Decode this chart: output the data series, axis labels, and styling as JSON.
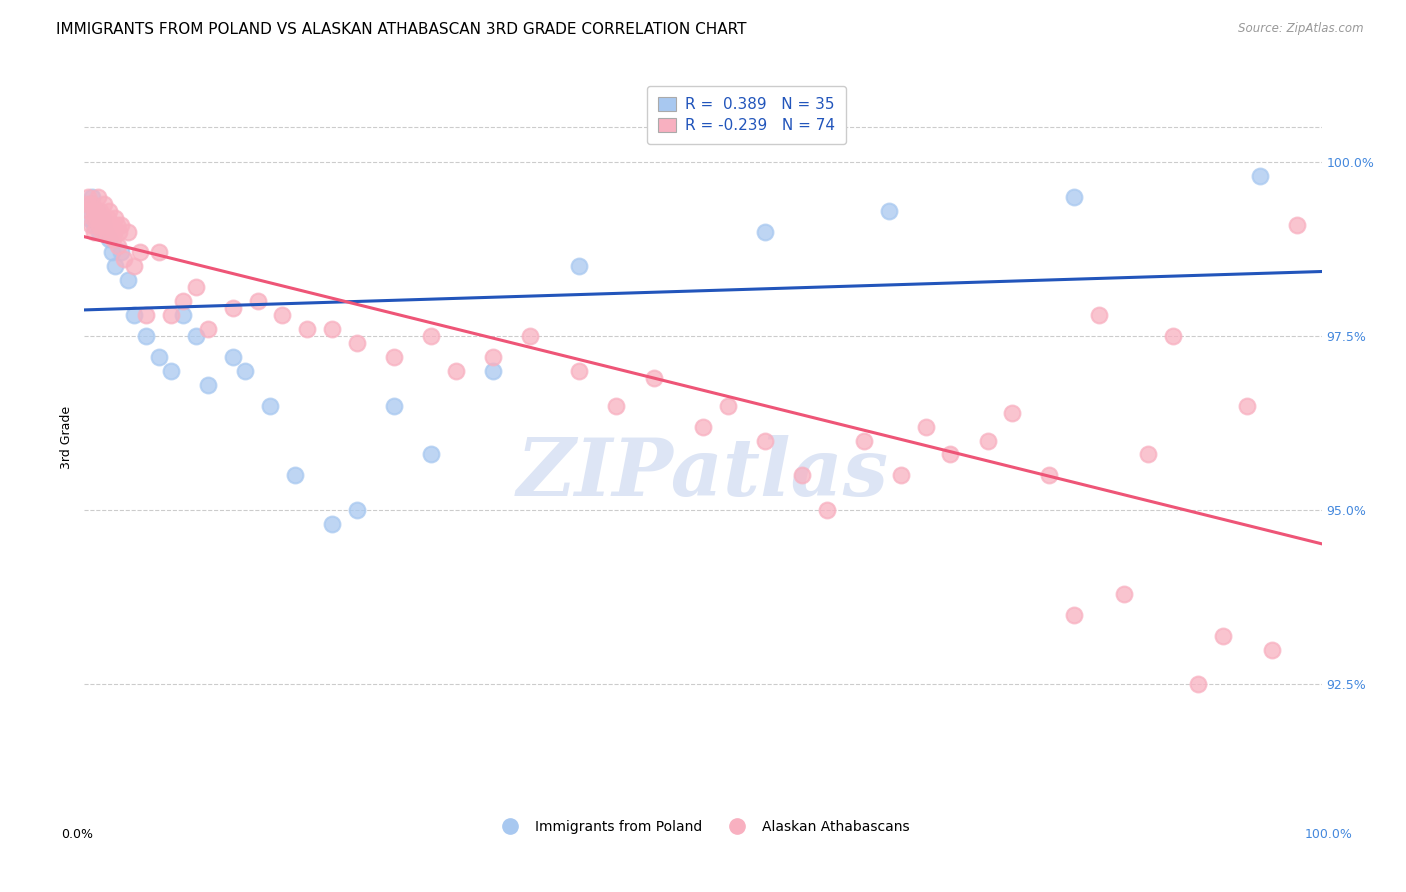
{
  "title": "IMMIGRANTS FROM POLAND VS ALASKAN ATHABASCAN 3RD GRADE CORRELATION CHART",
  "source": "Source: ZipAtlas.com",
  "ylabel": "3rd Grade",
  "right_yticks": [
    92.5,
    95.0,
    97.5,
    100.0
  ],
  "right_ylabels": [
    "92.5%",
    "95.0%",
    "97.5%",
    "100.0%"
  ],
  "xlim": [
    0,
    100
  ],
  "ylim": [
    90.8,
    101.3
  ],
  "legend_blue_label": "Immigrants from Poland",
  "legend_pink_label": "Alaskan Athabascans",
  "R_blue": "0.389",
  "N_blue": "35",
  "R_pink": "-0.239",
  "N_pink": "74",
  "blue_scatter_color": "#a8c8f0",
  "pink_scatter_color": "#f8b0c0",
  "blue_line_color": "#2255bb",
  "pink_line_color": "#ee5577",
  "blue_x": [
    0.3,
    0.5,
    0.6,
    0.8,
    1.0,
    1.2,
    1.4,
    1.5,
    1.7,
    2.0,
    2.2,
    2.5,
    3.0,
    3.5,
    4.0,
    5.0,
    6.0,
    7.0,
    8.0,
    9.0,
    10.0,
    12.0,
    13.0,
    15.0,
    17.0,
    20.0,
    22.0,
    25.0,
    28.0,
    33.0,
    40.0,
    55.0,
    65.0,
    80.0,
    95.0
  ],
  "blue_y": [
    99.2,
    99.4,
    99.5,
    99.1,
    99.3,
    99.0,
    99.2,
    99.1,
    99.0,
    98.9,
    98.7,
    98.5,
    98.7,
    98.3,
    97.8,
    97.5,
    97.2,
    97.0,
    97.8,
    97.5,
    96.8,
    97.2,
    97.0,
    96.5,
    95.5,
    94.8,
    95.0,
    96.5,
    95.8,
    97.0,
    98.5,
    99.0,
    99.3,
    99.5,
    99.8
  ],
  "pink_x": [
    0.2,
    0.3,
    0.4,
    0.5,
    0.6,
    0.7,
    0.8,
    0.9,
    1.0,
    1.1,
    1.2,
    1.3,
    1.4,
    1.5,
    1.6,
    1.7,
    1.8,
    1.9,
    2.0,
    2.1,
    2.2,
    2.3,
    2.4,
    2.5,
    2.6,
    2.7,
    2.8,
    3.0,
    3.2,
    3.5,
    4.0,
    4.5,
    5.0,
    6.0,
    7.0,
    8.0,
    9.0,
    10.0,
    12.0,
    14.0,
    16.0,
    18.0,
    20.0,
    22.0,
    25.0,
    28.0,
    30.0,
    33.0,
    36.0,
    40.0,
    43.0,
    46.0,
    50.0,
    52.0,
    55.0,
    58.0,
    60.0,
    63.0,
    66.0,
    68.0,
    70.0,
    73.0,
    75.0,
    78.0,
    80.0,
    82.0,
    84.0,
    86.0,
    88.0,
    90.0,
    92.0,
    94.0,
    96.0,
    98.0
  ],
  "pink_y": [
    99.4,
    99.5,
    99.3,
    99.1,
    99.4,
    99.2,
    99.0,
    99.3,
    99.2,
    99.5,
    99.1,
    99.3,
    99.0,
    99.2,
    99.4,
    99.1,
    99.0,
    99.2,
    99.3,
    99.0,
    99.1,
    98.9,
    99.0,
    99.2,
    99.1,
    98.8,
    99.0,
    99.1,
    98.6,
    99.0,
    98.5,
    98.7,
    97.8,
    98.7,
    97.8,
    98.0,
    98.2,
    97.6,
    97.9,
    98.0,
    97.8,
    97.6,
    97.6,
    97.4,
    97.2,
    97.5,
    97.0,
    97.2,
    97.5,
    97.0,
    96.5,
    96.9,
    96.2,
    96.5,
    96.0,
    95.5,
    95.0,
    96.0,
    95.5,
    96.2,
    95.8,
    96.0,
    96.4,
    95.5,
    93.5,
    97.8,
    93.8,
    95.8,
    97.5,
    92.5,
    93.2,
    96.5,
    93.0,
    99.1
  ],
  "watermark_text": "ZIPatlas",
  "bg_color": "#ffffff",
  "grid_color": "#cccccc"
}
